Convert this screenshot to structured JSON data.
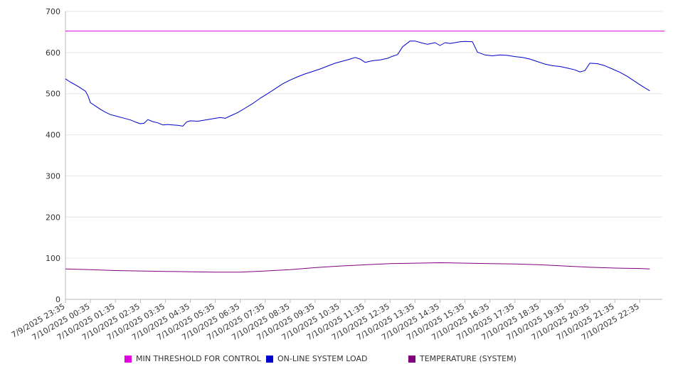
{
  "chart_data": {
    "type": "line",
    "ylim": [
      0,
      700
    ],
    "y_ticks": [
      0,
      100,
      200,
      300,
      400,
      500,
      600,
      700
    ],
    "grid": "horizontal",
    "legend_position": "bottom",
    "x_tick_labels": [
      "7/9/2025 23:35",
      "7/10/2025 00:35",
      "7/10/2025 01:35",
      "7/10/2025 02:35",
      "7/10/2025 03:35",
      "7/10/2025 04:35",
      "7/10/2025 05:35",
      "7/10/2025 06:35",
      "7/10/2025 07:35",
      "7/10/2025 08:35",
      "7/10/2025 09:35",
      "7/10/2025 10:35",
      "7/10/2025 11:35",
      "7/10/2025 12:35",
      "7/10/2025 13:35",
      "7/10/2025 14:35",
      "7/10/2025 15:35",
      "7/10/2025 16:35",
      "7/10/2025 17:35",
      "7/10/2025 18:35",
      "7/10/2025 19:35",
      "7/10/2025 20:35",
      "7/10/2025 21:35",
      "7/10/2025 22:35"
    ],
    "series": [
      {
        "name": "MIN THRESHOLD FOR CONTROL",
        "color": "#e000e0",
        "points": [
          [
            0,
            652
          ],
          [
            24,
            652
          ]
        ]
      },
      {
        "name": "ON-LINE SYSTEM LOAD",
        "color": "#0000cc",
        "points": [
          [
            0,
            536
          ],
          [
            0.2,
            528
          ],
          [
            0.5,
            518
          ],
          [
            0.8,
            506
          ],
          [
            0.9,
            495
          ],
          [
            1.0,
            478
          ],
          [
            1.2,
            470
          ],
          [
            1.4,
            462
          ],
          [
            1.6,
            455
          ],
          [
            1.8,
            449
          ],
          [
            2.0,
            446
          ],
          [
            2.3,
            441
          ],
          [
            2.6,
            436
          ],
          [
            2.8,
            431
          ],
          [
            3.0,
            427
          ],
          [
            3.15,
            428
          ],
          [
            3.3,
            437
          ],
          [
            3.5,
            432
          ],
          [
            3.7,
            429
          ],
          [
            3.9,
            424
          ],
          [
            4.1,
            425
          ],
          [
            4.3,
            424
          ],
          [
            4.5,
            423
          ],
          [
            4.7,
            421
          ],
          [
            4.85,
            431
          ],
          [
            5.0,
            434
          ],
          [
            5.3,
            433
          ],
          [
            5.6,
            436
          ],
          [
            5.9,
            439
          ],
          [
            6.2,
            442
          ],
          [
            6.4,
            440
          ],
          [
            6.6,
            446
          ],
          [
            6.9,
            454
          ],
          [
            7.2,
            465
          ],
          [
            7.5,
            476
          ],
          [
            7.8,
            489
          ],
          [
            8.1,
            500
          ],
          [
            8.4,
            512
          ],
          [
            8.7,
            524
          ],
          [
            9.0,
            533
          ],
          [
            9.3,
            541
          ],
          [
            9.6,
            548
          ],
          [
            9.9,
            554
          ],
          [
            10.2,
            560
          ],
          [
            10.5,
            567
          ],
          [
            10.8,
            574
          ],
          [
            11.1,
            579
          ],
          [
            11.4,
            584
          ],
          [
            11.6,
            588
          ],
          [
            11.8,
            584
          ],
          [
            12.0,
            576
          ],
          [
            12.3,
            580
          ],
          [
            12.6,
            582
          ],
          [
            12.9,
            586
          ],
          [
            13.1,
            591
          ],
          [
            13.3,
            595
          ],
          [
            13.5,
            614
          ],
          [
            13.8,
            628
          ],
          [
            14.0,
            628
          ],
          [
            14.3,
            623
          ],
          [
            14.5,
            620
          ],
          [
            14.8,
            624
          ],
          [
            15.0,
            617
          ],
          [
            15.2,
            624
          ],
          [
            15.4,
            622
          ],
          [
            15.6,
            624
          ],
          [
            15.8,
            626
          ],
          [
            16.0,
            627
          ],
          [
            16.3,
            626
          ],
          [
            16.5,
            601
          ],
          [
            16.8,
            594
          ],
          [
            17.1,
            592
          ],
          [
            17.4,
            594
          ],
          [
            17.7,
            593
          ],
          [
            18.0,
            590
          ],
          [
            18.3,
            588
          ],
          [
            18.6,
            584
          ],
          [
            18.9,
            578
          ],
          [
            19.2,
            572
          ],
          [
            19.5,
            568
          ],
          [
            19.8,
            566
          ],
          [
            20.1,
            562
          ],
          [
            20.4,
            558
          ],
          [
            20.6,
            553
          ],
          [
            20.8,
            556
          ],
          [
            21.0,
            574
          ],
          [
            21.3,
            573
          ],
          [
            21.6,
            568
          ],
          [
            21.9,
            560
          ],
          [
            22.2,
            552
          ],
          [
            22.5,
            542
          ],
          [
            22.8,
            530
          ],
          [
            23.1,
            518
          ],
          [
            23.4,
            507
          ]
        ]
      },
      {
        "name": "TEMPERATURE (SYSTEM)",
        "color": "#800080",
        "points": [
          [
            0,
            74
          ],
          [
            1.0,
            72
          ],
          [
            2.0,
            70
          ],
          [
            3.0,
            69
          ],
          [
            4.0,
            68
          ],
          [
            5.0,
            67
          ],
          [
            6.0,
            66
          ],
          [
            7.0,
            66
          ],
          [
            8.0,
            69
          ],
          [
            9.0,
            72
          ],
          [
            10.0,
            77
          ],
          [
            11.0,
            81
          ],
          [
            12.0,
            84
          ],
          [
            13.0,
            87
          ],
          [
            14.0,
            88
          ],
          [
            15.0,
            89
          ],
          [
            16.0,
            88
          ],
          [
            17.0,
            87
          ],
          [
            18.0,
            86
          ],
          [
            19.0,
            84
          ],
          [
            20.0,
            81
          ],
          [
            21.0,
            78
          ],
          [
            22.0,
            76
          ],
          [
            23.0,
            75
          ],
          [
            23.4,
            74
          ]
        ]
      }
    ]
  }
}
